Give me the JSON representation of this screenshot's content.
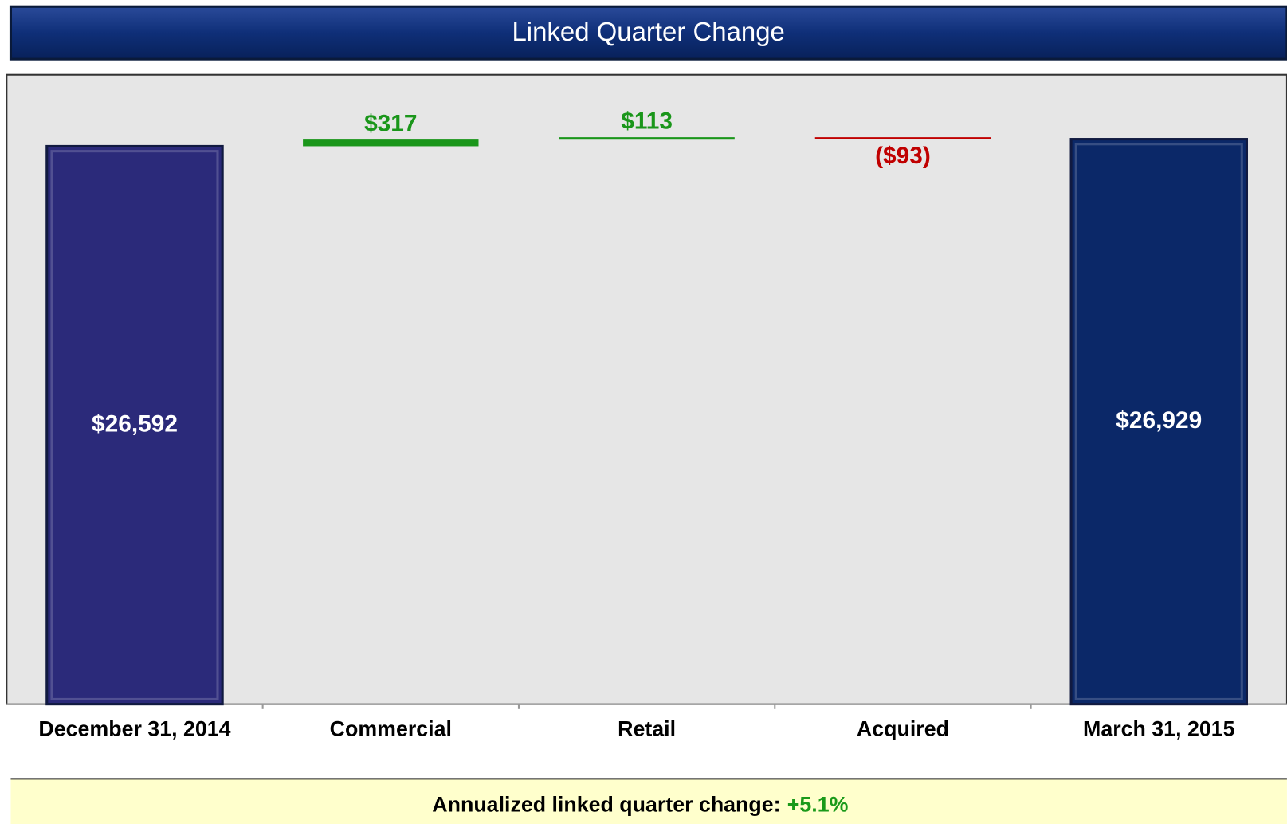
{
  "chart_data": {
    "type": "waterfall",
    "title": "Linked Quarter Change",
    "categories": [
      "December 31, 2014",
      "Commercial",
      "Retail",
      "Acquired",
      "March 31, 2015"
    ],
    "values": [
      26592,
      317,
      113,
      -93,
      26929
    ],
    "value_labels": [
      "$26,592",
      "$317",
      "$113",
      "($93)",
      "$26,929"
    ],
    "colors": [
      "#2b2a7a",
      "#1a961a",
      "#1a961a",
      "#c00000",
      "#0b2868"
    ],
    "ylim": [
      0,
      30000
    ],
    "footnote": {
      "label": "Annualized linked quarter change:",
      "value": "+5.1%"
    }
  }
}
